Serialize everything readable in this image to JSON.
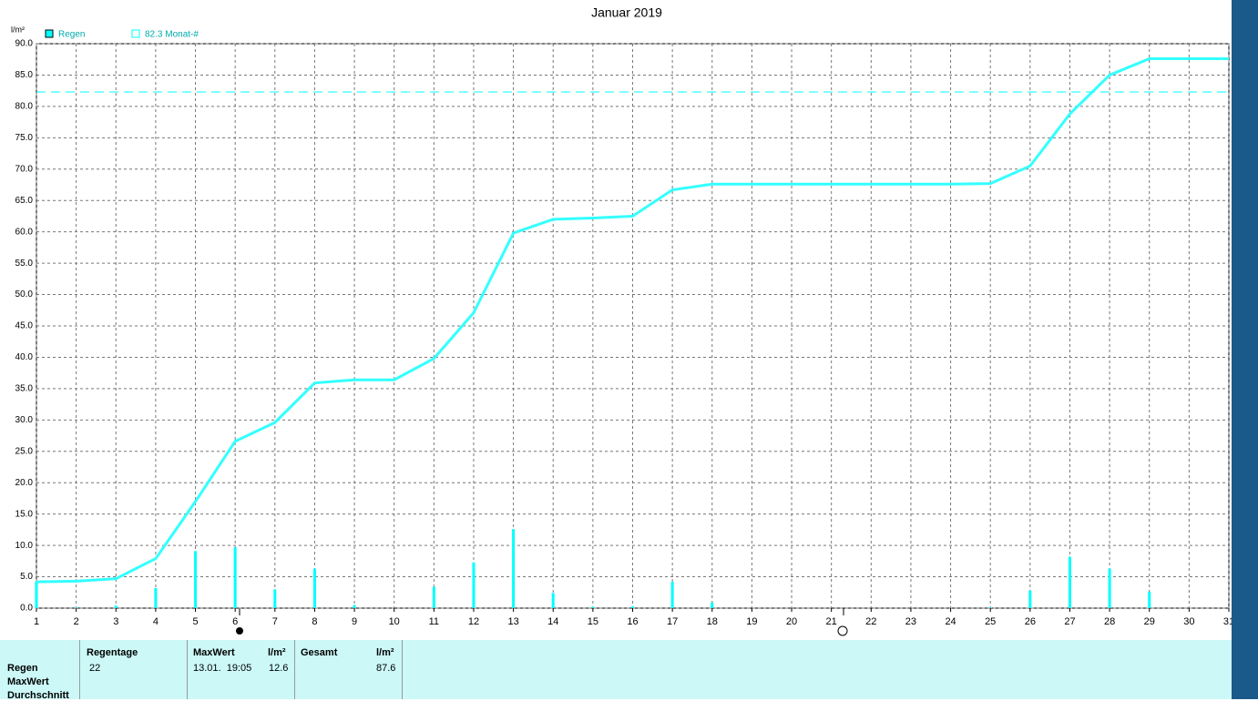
{
  "chart_data": {
    "type": "combo",
    "title": "Januar 2019",
    "y_label": "l/m²",
    "x": [
      1,
      2,
      3,
      4,
      5,
      6,
      7,
      8,
      9,
      10,
      11,
      12,
      13,
      14,
      15,
      16,
      17,
      18,
      19,
      20,
      21,
      22,
      23,
      24,
      25,
      26,
      27,
      28,
      29,
      30,
      31
    ],
    "series": [
      {
        "name": "Regen",
        "type": "bar",
        "color": "#00ffff",
        "values": [
          4.2,
          0.1,
          0.4,
          3.2,
          9.1,
          9.7,
          3.0,
          6.3,
          0.5,
          0,
          3.4,
          7.3,
          12.6,
          2.4,
          0.2,
          0.3,
          4.2,
          0.9,
          0,
          0,
          0,
          0,
          0,
          0,
          0.1,
          2.8,
          8.2,
          6.3,
          2.6,
          0,
          0
        ]
      },
      {
        "type": "line",
        "color": "#33ffff",
        "values": [
          4.2,
          4.3,
          4.7,
          7.9,
          17.0,
          26.6,
          29.6,
          35.9,
          36.4,
          36.4,
          39.8,
          47.1,
          59.8,
          62.0,
          62.2,
          62.5,
          66.7,
          67.6,
          67.6,
          67.6,
          67.6,
          67.6,
          67.6,
          67.6,
          67.7,
          70.5,
          78.8,
          85.0,
          87.6,
          87.6,
          87.6
        ]
      }
    ],
    "reference": {
      "value": 82.3,
      "label": "82.3 Monat-#",
      "color": "#00ffff"
    },
    "xlim": [
      1,
      31
    ],
    "xticks": [
      1,
      2,
      3,
      4,
      5,
      6,
      7,
      8,
      9,
      10,
      11,
      12,
      13,
      14,
      15,
      16,
      17,
      18,
      19,
      20,
      21,
      22,
      23,
      24,
      25,
      26,
      27,
      28,
      29,
      30,
      31
    ],
    "ylim": [
      0,
      90
    ],
    "yticks": [
      {
        "value": 0,
        "label": "0.0"
      },
      {
        "value": 5,
        "label": "5.0"
      },
      {
        "value": 10,
        "label": "10.0"
      },
      {
        "value": 15,
        "label": "15.0"
      },
      {
        "value": 20,
        "label": "20.0"
      },
      {
        "value": 25,
        "label": "25.0"
      },
      {
        "value": 30,
        "label": "30.0"
      },
      {
        "value": 35,
        "label": "35.0"
      },
      {
        "value": 40,
        "label": "40.0"
      },
      {
        "value": 45,
        "label": "45.0"
      },
      {
        "value": 50,
        "label": "50.0"
      },
      {
        "value": 55,
        "label": "55.0"
      },
      {
        "value": 60,
        "label": "60.0"
      },
      {
        "value": 65,
        "label": "65.0"
      },
      {
        "value": 70,
        "label": "70.0"
      },
      {
        "value": 75,
        "label": "75.0"
      },
      {
        "value": 80,
        "label": "80.0"
      },
      {
        "value": 85,
        "label": "85.0"
      },
      {
        "value": 90,
        "label": "90.0"
      }
    ],
    "grid": true
  },
  "table": {
    "headers": [
      "Regentage",
      "MaxWert",
      "l/m²",
      "Gesamt",
      "l/m²"
    ],
    "row_labels": [
      "Regen",
      "MaxWert",
      "Durchschnitt"
    ],
    "cells": [
      "22",
      "13.01.  19:05",
      "12.6",
      "87.6"
    ]
  }
}
